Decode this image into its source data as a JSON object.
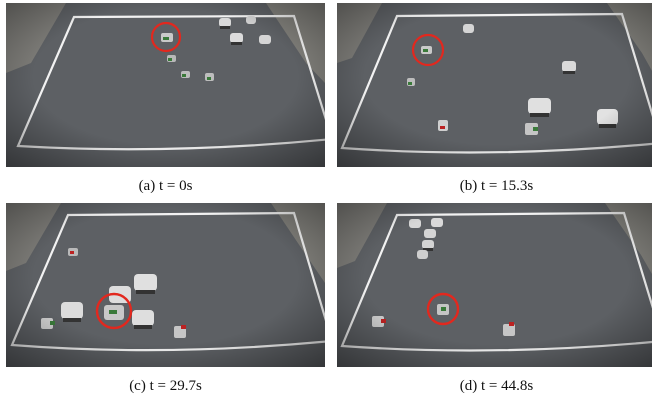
{
  "panels": [
    {
      "caption": "(a) t = 0s"
    },
    {
      "caption": "(b) t = 15.3s"
    },
    {
      "caption": "(c) t = 29.7s"
    },
    {
      "caption": "(d) t = 44.8s"
    }
  ],
  "colors": {
    "floor": "#5d6064",
    "floor_dark": "#4a4d51",
    "boundary_line": "#f2f2f2",
    "highlight_circle": "#e2281e",
    "wall": "#b9b6ad"
  }
}
